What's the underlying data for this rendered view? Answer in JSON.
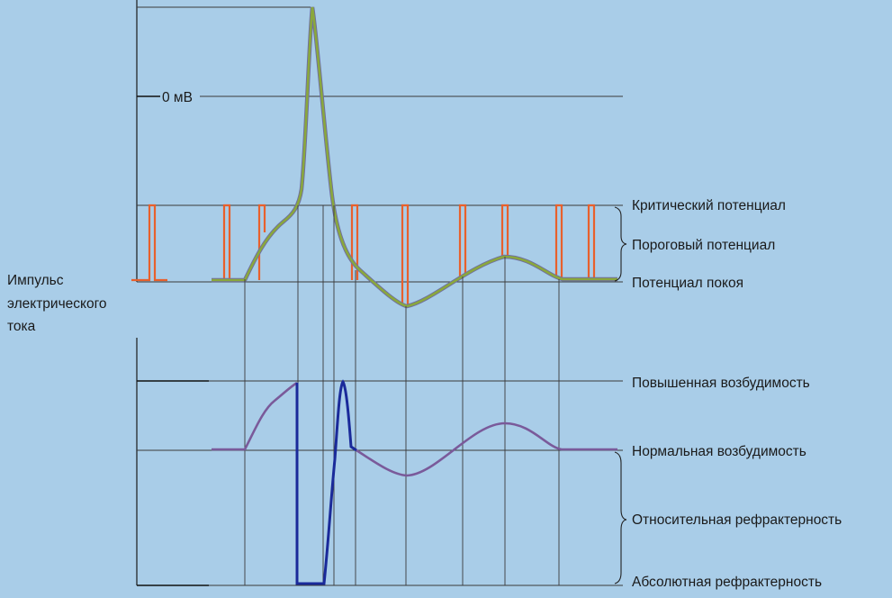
{
  "top_panel": {
    "zero_label": "0 мВ",
    "level_labels": {
      "critical": "Критический потенциал",
      "threshold": "Пороговый потенциал",
      "resting": "Потенциал покоя"
    }
  },
  "stimulus_label_lines": [
    "Импульс",
    "электрического",
    "тока"
  ],
  "bottom_panel": {
    "level_labels": {
      "increased": "Повышенная возбудимость",
      "normal": "Нормальная возбудимость",
      "relative": "Относительная рефрактерность",
      "absolute": "Абсолютная рефрактерность"
    }
  },
  "colors": {
    "background": "#a9cde8",
    "potential_curve_fill": "#8aa83c",
    "potential_curve_edge": "#6f6fa0",
    "stimulus_pulses": "#e8602c",
    "excitability_curve": "#7a5a9a",
    "refractory_segment": "#1a2a9a"
  }
}
